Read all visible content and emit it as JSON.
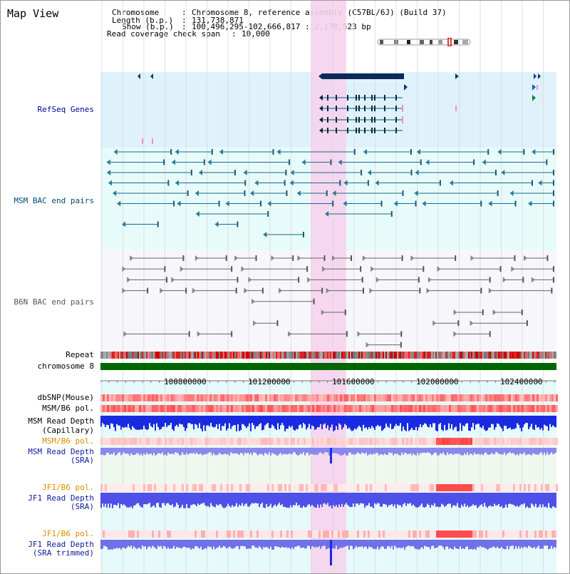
{
  "title": "Map View",
  "header": {
    "chromosome_key": "Chromosome",
    "chromosome_val": "Chromosome 8, reference assembly (C57BL/6J) (Build 37)",
    "length_key": "Length (b.p.)",
    "length_val": "131,738,871",
    "show_key": "Show (b.p.)",
    "show_val": "100,496,295-102,666,817 : 2,170,523 bp",
    "coverage_key": "Read coverage check span",
    "coverage_val": "10,000"
  },
  "tracks": {
    "refseq": "RefSeq Genes",
    "msm_bac": "MSM BAC end pairs",
    "b6n_bac": "B6N BAC end pairs",
    "repeat": "Repeat",
    "chromosome": "chromosome 8",
    "dbsnp": "dbSNP(Mouse)",
    "msm_b6_pol_1": "MSM/B6 pol.",
    "msm_depth_cap_1": "MSM Read Depth",
    "msm_depth_cap_2": "(Capillary)",
    "msm_b6_pol_2": "MSM/B6 pol.",
    "msm_depth_sra_1": "MSM Read Depth",
    "msm_depth_sra_2": "(SRA)",
    "jf1_b6_pol_1": "JF1/B6 pol.",
    "jf1_depth_sra_1": "JF1 Read Depth",
    "jf1_depth_sra_2": "(SRA)",
    "jf1_b6_pol_2": "JF1/B6 pol.",
    "jf1_depth_trim_1": "JF1 Read Depth",
    "jf1_depth_trim_2": "(SRA trimmed)"
  },
  "axis": {
    "ticks": [
      "100800000",
      "101200000",
      "101600000",
      "102000000",
      "102400000"
    ]
  },
  "colors": {
    "refseq_bg": "#dff2fb",
    "bac_bg": "#e8fbfb",
    "highlight": "#f6d3ee",
    "refseq_label": "#000099",
    "msm_label": "#004a7a",
    "b6n_label": "#555555",
    "pol_label": "#e08a00",
    "depth_label": "#0a1a9a",
    "chromosome_bar": "#006600"
  }
}
